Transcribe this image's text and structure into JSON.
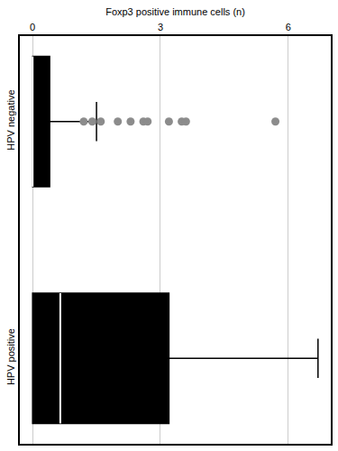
{
  "chart_data": {
    "type": "box",
    "orientation": "horizontal",
    "x_label": "Foxp3 positive immune cells (n)",
    "categories": [
      "HPV negative",
      "HPV positive"
    ],
    "q1": [
      0,
      0
    ],
    "median": [
      0,
      0.65
    ],
    "q3": [
      0.4,
      3.2
    ],
    "lowerfence": [
      0,
      0
    ],
    "upperfence": [
      1.5,
      6.7
    ],
    "outliers": [
      [
        1.2,
        1.4,
        1.6,
        2.0,
        2.3,
        2.6,
        2.7,
        3.2,
        3.5,
        3.6,
        5.7
      ],
      []
    ],
    "color": "#000000",
    "xlim": [
      -0.3,
      7.0
    ],
    "xticks": [
      0,
      3,
      6
    ],
    "grid": true
  }
}
